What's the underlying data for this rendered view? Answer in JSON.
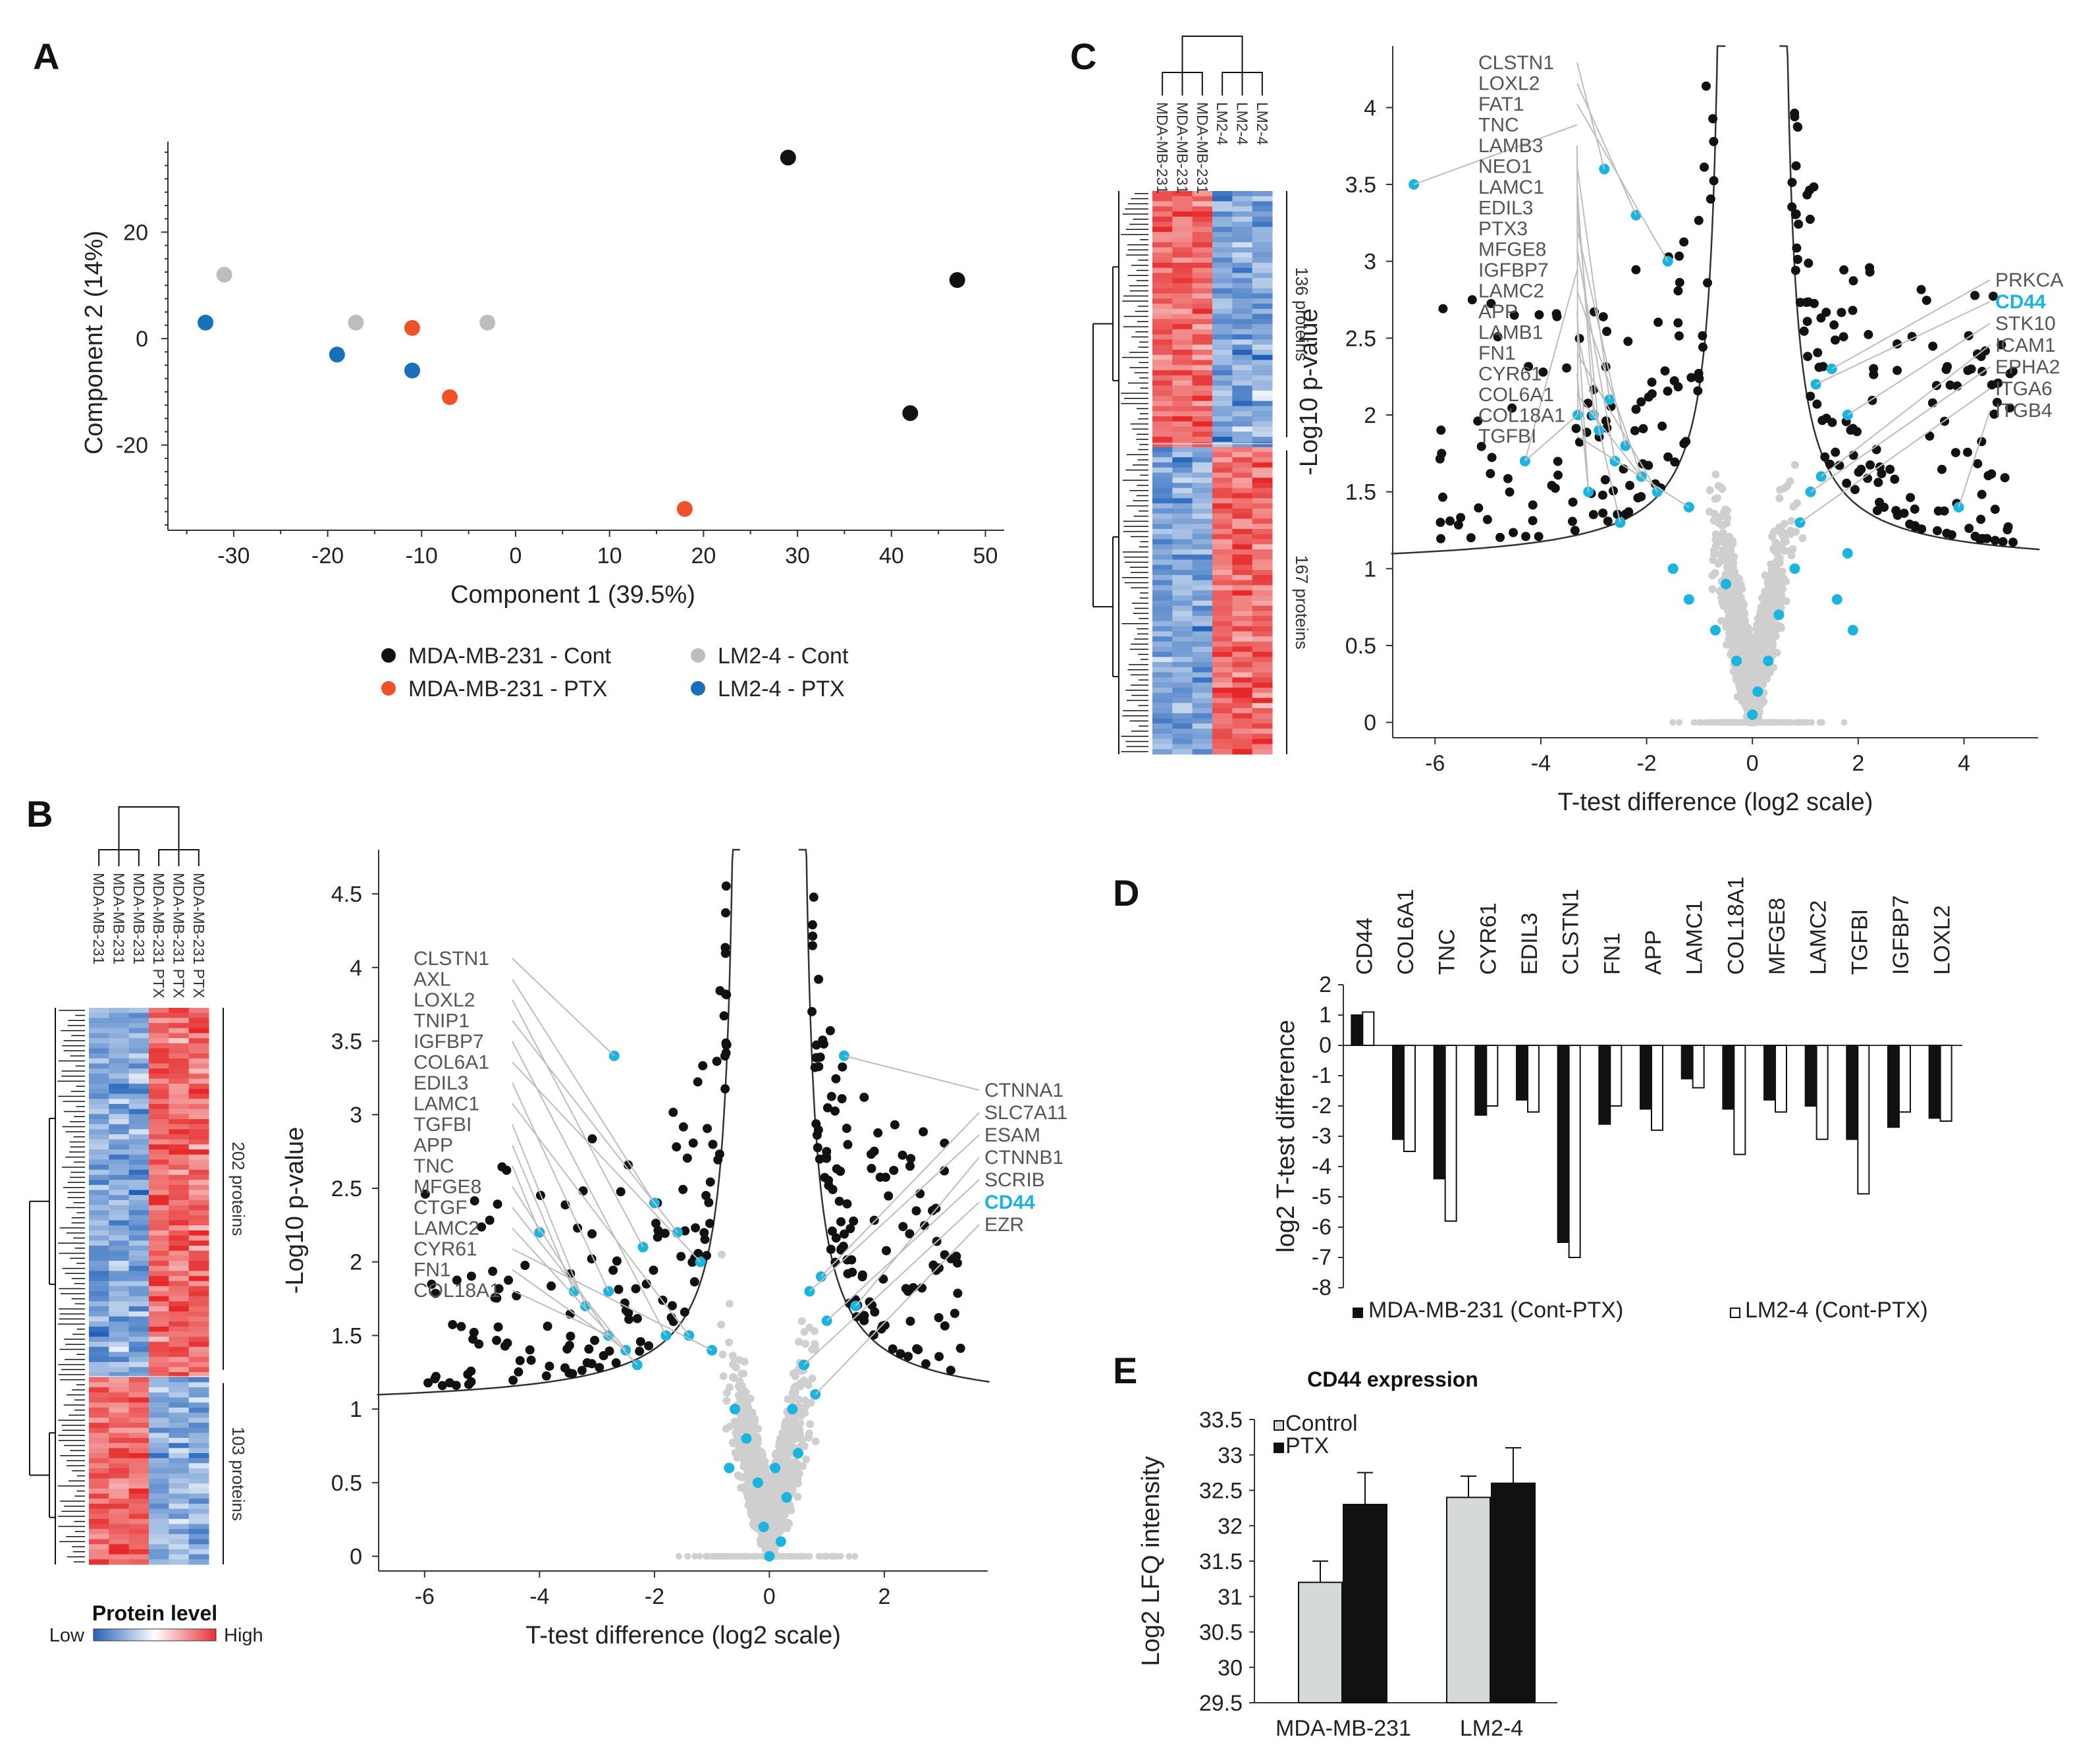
{
  "chart_data": [
    {
      "panel": "A",
      "type": "scatter",
      "xlabel": "Component 1 (39.5%)",
      "ylabel": "Component 2 (14%)",
      "xlim": [
        -37,
        52
      ],
      "ylim": [
        -36,
        37
      ],
      "xticks": [
        -30,
        -20,
        -10,
        0,
        10,
        20,
        30,
        40,
        50
      ],
      "yticks": [
        20,
        0,
        -20
      ],
      "series": [
        {
          "name": "MDA-MB-231 - Cont",
          "color": "#111111",
          "points": [
            [
              29,
              34
            ],
            [
              47,
              11
            ],
            [
              42,
              -14
            ]
          ]
        },
        {
          "name": "LM2-4 - Cont",
          "color": "#bdbdbd",
          "points": [
            [
              -31,
              12
            ],
            [
              -17,
              3
            ],
            [
              -3,
              3
            ]
          ]
        },
        {
          "name": "MDA-MB-231 - PTX",
          "color": "#f0502a",
          "points": [
            [
              -11,
              2
            ],
            [
              -7,
              -11
            ],
            [
              18,
              -32
            ]
          ]
        },
        {
          "name": "LM2-4 - PTX",
          "color": "#1a6fbd",
          "points": [
            [
              -33,
              3
            ],
            [
              -19,
              -3
            ],
            [
              -11,
              -6
            ]
          ]
        }
      ]
    },
    {
      "panel": "B",
      "type": "scatter",
      "heatmap": {
        "samples": [
          "MDA-MB-231",
          "MDA-MB-231",
          "MDA-MB-231",
          "MDA-MB-231 PTX",
          "MDA-MB-231 PTX",
          "MDA-MB-231 PTX"
        ],
        "clusters": [
          {
            "label": "202 proteins",
            "proteins": 202
          },
          {
            "label": "103 proteins",
            "proteins": 103
          }
        ],
        "scale_title": "Protein level",
        "scale_low": "Low",
        "scale_high": "High"
      },
      "xlabel": "T-test difference (log2 scale)",
      "ylabel": "-Log10  p-value",
      "xlim": [
        -6.8,
        3.8
      ],
      "ylim": [
        -0.1,
        4.8
      ],
      "xticks": [
        -6,
        -4,
        -2,
        0,
        2
      ],
      "yticks": [
        0,
        0.5,
        1,
        1.5,
        2,
        2.5,
        3,
        3.5,
        4,
        4.5
      ],
      "threshold": {
        "s0": 0.1,
        "fdr": 0.05
      },
      "highlight_color": "#1ab4e0",
      "highlight_points": [
        [
          -2.7,
          3.4
        ],
        [
          -2.0,
          2.4
        ],
        [
          -2.2,
          2.1
        ],
        [
          -1.6,
          2.2
        ],
        [
          -1.2,
          2.0
        ],
        [
          -2.8,
          1.8
        ],
        [
          -3.2,
          1.7
        ],
        [
          -3.4,
          1.8
        ],
        [
          -4.0,
          2.2
        ],
        [
          -2.8,
          1.5
        ],
        [
          -2.5,
          1.4
        ],
        [
          -2.3,
          1.3
        ],
        [
          -1.8,
          1.5
        ],
        [
          -1.4,
          1.5
        ],
        [
          -1.0,
          1.4
        ],
        [
          1.3,
          3.4
        ],
        [
          0.9,
          1.9
        ],
        [
          0.7,
          1.8
        ],
        [
          1.0,
          1.6
        ],
        [
          1.5,
          1.7
        ],
        [
          0.6,
          1.3
        ],
        [
          0.8,
          1.1
        ],
        [
          0.4,
          1.0
        ],
        [
          -0.6,
          1.0
        ],
        [
          -0.4,
          0.8
        ],
        [
          -0.2,
          0.5
        ],
        [
          0.1,
          0.6
        ],
        [
          0.3,
          0.4
        ],
        [
          -0.7,
          0.6
        ],
        [
          0.5,
          0.7
        ],
        [
          -0.1,
          0.2
        ],
        [
          0.2,
          0.1
        ],
        [
          0.0,
          0.0
        ]
      ],
      "callouts_left": [
        "CLSTN1",
        "AXL",
        "LOXL2",
        "TNIP1",
        "IGFBP7",
        "COL6A1",
        "EDIL3",
        "LAMC1",
        "TGFBI",
        "APP",
        "TNC",
        "MFGE8",
        "CTGF",
        "LAMC2",
        "CYR61",
        "FN1",
        "COL18A1"
      ],
      "callouts_right": [
        "CTNNA1",
        "SLC7A11",
        "ESAM",
        "CTNNB1",
        "SCRIB",
        "CD44",
        "EZR"
      ],
      "emphasis": "CD44"
    },
    {
      "panel": "C",
      "type": "scatter",
      "heatmap": {
        "samples": [
          "MDA-MB-231",
          "MDA-MB-231",
          "MDA-MB-231",
          "LM2-4",
          "LM2-4",
          "LM2-4"
        ],
        "clusters": [
          {
            "label": "136 proteins",
            "proteins": 136
          },
          {
            "label": "167 proteins",
            "proteins": 167
          }
        ]
      },
      "xlabel": "T-test difference (log2 scale)",
      "ylabel": "-Log10  p-value",
      "xlim": [
        -6.8,
        5.4
      ],
      "ylim": [
        -0.1,
        4.4
      ],
      "xticks": [
        -6,
        -4,
        -2,
        0,
        2,
        4
      ],
      "yticks": [
        0,
        0.5,
        1,
        1.5,
        2,
        2.5,
        3,
        3.5,
        4
      ],
      "threshold": {
        "s0": 0.1,
        "fdr": 0.05
      },
      "highlight_color": "#1ab4e0",
      "highlight_points": [
        [
          -6.4,
          3.5
        ],
        [
          -2.8,
          3.6
        ],
        [
          -2.2,
          3.3
        ],
        [
          -1.6,
          3.0
        ],
        [
          -3.3,
          2.0
        ],
        [
          -3.0,
          2.0
        ],
        [
          -2.7,
          2.1
        ],
        [
          -2.9,
          1.9
        ],
        [
          -2.4,
          1.8
        ],
        [
          -2.6,
          1.7
        ],
        [
          -4.3,
          1.7
        ],
        [
          -2.1,
          1.6
        ],
        [
          -3.1,
          1.5
        ],
        [
          -2.5,
          1.3
        ],
        [
          -1.8,
          1.5
        ],
        [
          -1.2,
          1.4
        ],
        [
          1.2,
          2.2
        ],
        [
          1.5,
          2.3
        ],
        [
          1.8,
          2.0
        ],
        [
          1.3,
          1.6
        ],
        [
          1.1,
          1.5
        ],
        [
          0.9,
          1.3
        ],
        [
          3.9,
          1.4
        ],
        [
          1.8,
          1.1
        ],
        [
          1.6,
          0.8
        ],
        [
          1.9,
          0.6
        ],
        [
          -1.5,
          1.0
        ],
        [
          -1.2,
          0.8
        ],
        [
          -0.5,
          0.9
        ],
        [
          -0.7,
          0.6
        ],
        [
          0.5,
          0.7
        ],
        [
          0.3,
          0.4
        ],
        [
          -0.3,
          0.4
        ],
        [
          0.1,
          0.2
        ],
        [
          0.0,
          0.05
        ],
        [
          0.8,
          1.0
        ]
      ],
      "callouts_left": [
        "CLSTN1",
        "LOXL2",
        "FAT1",
        "TNC",
        "LAMB3",
        "NEO1",
        "LAMC1",
        "EDIL3",
        "PTX3",
        "MFGE8",
        "IGFBP7",
        "LAMC2",
        "APP",
        "LAMB1",
        "FN1",
        "CYR61",
        "COL6A1",
        "COL18A1",
        "TGFBI"
      ],
      "callouts_right": [
        "PRKCA",
        "CD44",
        "STK10",
        "ICAM1",
        "EPHA2",
        "ITGA6",
        "ITGB4"
      ],
      "emphasis": "CD44"
    },
    {
      "panel": "D",
      "type": "bar",
      "ylabel": "log2 T-test difference",
      "ylim": [
        -8,
        2
      ],
      "yticks": [
        2,
        1,
        0,
        -1,
        -2,
        -3,
        -4,
        -5,
        -6,
        -7,
        -8
      ],
      "categories": [
        "CD44",
        "COL6A1",
        "TNC",
        "CYR61",
        "EDIL3",
        "CLSTN1",
        "FN1",
        "APP",
        "LAMC1",
        "COL18A1",
        "MFGE8",
        "LAMC2",
        "TGFBI",
        "IGFBP7",
        "LOXL2"
      ],
      "series": [
        {
          "name": "MDA-MB-231 (Cont-PTX)",
          "color": "#111111",
          "values": [
            1.0,
            -3.1,
            -4.4,
            -2.3,
            -1.8,
            -6.5,
            -2.6,
            -2.1,
            -1.1,
            -2.1,
            -1.8,
            -2.0,
            -3.1,
            -2.7,
            -2.4
          ]
        },
        {
          "name": "LM2-4 (Cont-PTX)",
          "color": "#ffffff",
          "values": [
            1.1,
            -3.5,
            -5.8,
            -2.0,
            -2.2,
            -7.0,
            -2.0,
            -2.8,
            -1.4,
            -3.6,
            -2.2,
            -3.1,
            -4.9,
            -2.2,
            -2.5
          ]
        }
      ]
    },
    {
      "panel": "E",
      "type": "bar",
      "title": "CD44 expression",
      "ylabel": "Log2 LFQ intensity",
      "ylim": [
        29.5,
        33.5
      ],
      "yticks": [
        33.5,
        33,
        32.5,
        32,
        31.5,
        31,
        30.5,
        30,
        29.5
      ],
      "categories": [
        "MDA-MB-231",
        "LM2-4"
      ],
      "series": [
        {
          "name": "Control",
          "color": "#d6d9da",
          "values": [
            31.2,
            32.4
          ],
          "errors": [
            0.3,
            0.3
          ]
        },
        {
          "name": "PTX",
          "color": "#111111",
          "values": [
            32.3,
            32.6
          ],
          "errors": [
            0.45,
            0.5
          ]
        }
      ]
    }
  ],
  "panel_letters": {
    "a": "A",
    "b": "B",
    "c": "C",
    "d": "D",
    "e": "E"
  }
}
